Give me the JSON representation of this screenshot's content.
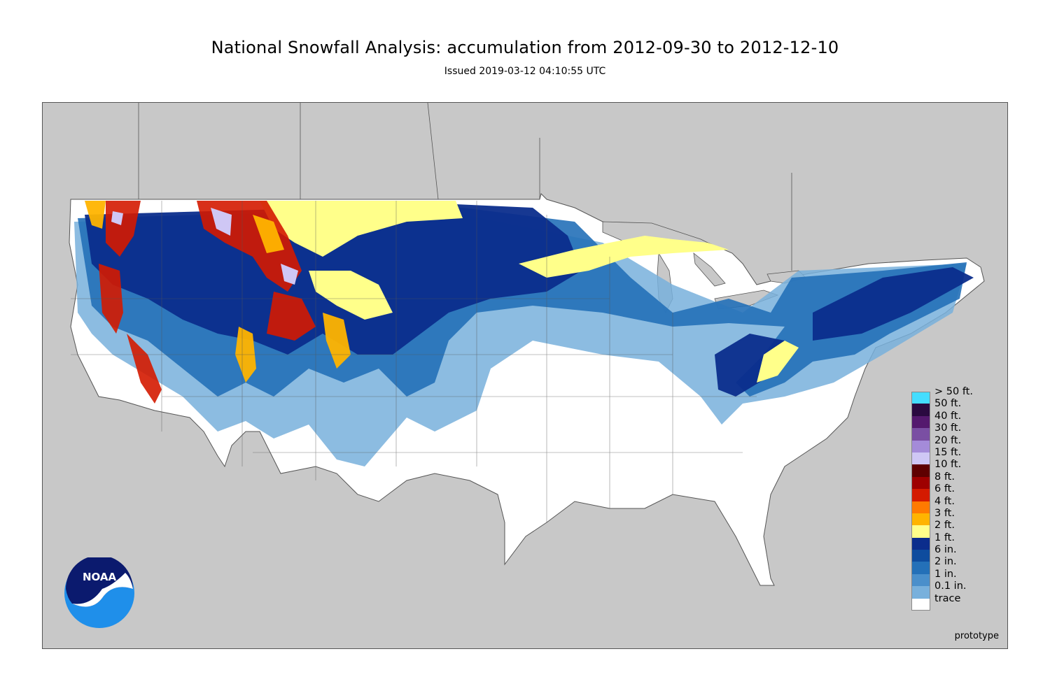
{
  "header": {
    "title": "National Snowfall Analysis: accumulation from 2012-09-30 to 2012-12-10",
    "issued": "Issued 2019-03-12 04:10:55 UTC"
  },
  "map": {
    "watermark": "prototype",
    "logo_text": "NOAA",
    "colors": {
      "ocean_and_foreign_land": "#c8c8c8",
      "borders": "#555555"
    }
  },
  "legend": {
    "entries": [
      {
        "label": "> 50 ft.",
        "color": "#44ddff"
      },
      {
        "label": "50 ft.",
        "color": "#2a0a40"
      },
      {
        "label": "40 ft.",
        "color": "#54196e"
      },
      {
        "label": "30 ft.",
        "color": "#7a4fa3"
      },
      {
        "label": "20 ft.",
        "color": "#a48bd9"
      },
      {
        "label": "15 ft.",
        "color": "#cfc7f5"
      },
      {
        "label": "10 ft.",
        "color": "#5e0000"
      },
      {
        "label": "8 ft.",
        "color": "#9e0000"
      },
      {
        "label": "6 ft.",
        "color": "#d41a00"
      },
      {
        "label": "4 ft.",
        "color": "#ff7a00"
      },
      {
        "label": "3 ft.",
        "color": "#ffb400"
      },
      {
        "label": "2 ft.",
        "color": "#ffff8a"
      },
      {
        "label": "1 ft.",
        "color": "#0b2d8c"
      },
      {
        "label": "6 in.",
        "color": "#0e4c9e"
      },
      {
        "label": "2 in.",
        "color": "#2470b8"
      },
      {
        "label": "1 in.",
        "color": "#4a8fcb"
      },
      {
        "label": "0.1 in.",
        "color": "#78b0dc"
      },
      {
        "label": "trace",
        "color": "#ffffff"
      }
    ]
  }
}
